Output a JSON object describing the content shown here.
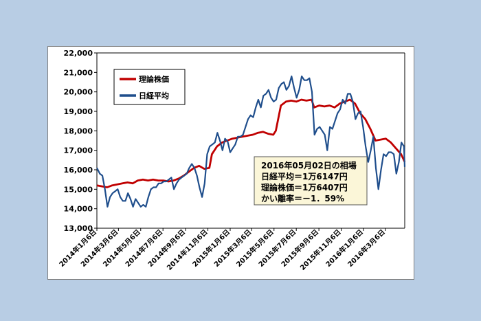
{
  "chart_data": {
    "type": "line",
    "y_ticks": [
      "13,000",
      "14,000",
      "15,000",
      "16,000",
      "17,000",
      "18,000",
      "19,000",
      "20,000",
      "21,000",
      "22,000"
    ],
    "ylim": [
      13000,
      22000
    ],
    "x_ticks": [
      "2014年1月6日",
      "2014年3月6日",
      "2014年5月6日",
      "2014年7月6日",
      "2014年9月6日",
      "2014年11月6日",
      "2015年1月6日",
      "2015年3月6日",
      "2015年5月6日",
      "2015年7月6日",
      "2015年9月6日",
      "2015年11月6日",
      "2016年1月6日",
      "2016年3月6日"
    ],
    "xlim": [
      "2014-01-06",
      "2016-04-28"
    ],
    "grid": false,
    "legend_position": "top-left",
    "series": [
      {
        "name": "理論株価",
        "color": "#c00000",
        "points": [
          [
            "2014-01-06",
            15200
          ],
          [
            "2014-01-20",
            15150
          ],
          [
            "2014-02-03",
            15100
          ],
          [
            "2014-02-17",
            15200
          ],
          [
            "2014-03-03",
            15250
          ],
          [
            "2014-03-17",
            15300
          ],
          [
            "2014-03-31",
            15350
          ],
          [
            "2014-04-14",
            15300
          ],
          [
            "2014-04-28",
            15450
          ],
          [
            "2014-05-12",
            15500
          ],
          [
            "2014-05-26",
            15450
          ],
          [
            "2014-06-09",
            15500
          ],
          [
            "2014-06-23",
            15450
          ],
          [
            "2014-07-07",
            15450
          ],
          [
            "2014-07-21",
            15400
          ],
          [
            "2014-08-04",
            15450
          ],
          [
            "2014-08-18",
            15550
          ],
          [
            "2014-09-01",
            15700
          ],
          [
            "2014-09-15",
            15900
          ],
          [
            "2014-09-29",
            16100
          ],
          [
            "2014-10-13",
            16200
          ],
          [
            "2014-10-27",
            16050
          ],
          [
            "2014-11-10",
            16100
          ],
          [
            "2014-11-17",
            16800
          ],
          [
            "2014-12-01",
            17200
          ],
          [
            "2014-12-15",
            17400
          ],
          [
            "2014-12-29",
            17500
          ],
          [
            "2015-01-12",
            17600
          ],
          [
            "2015-01-26",
            17650
          ],
          [
            "2015-02-09",
            17700
          ],
          [
            "2015-02-23",
            17750
          ],
          [
            "2015-03-09",
            17800
          ],
          [
            "2015-03-23",
            17900
          ],
          [
            "2015-04-06",
            17950
          ],
          [
            "2015-04-20",
            17850
          ],
          [
            "2015-05-04",
            17800
          ],
          [
            "2015-05-11",
            18000
          ],
          [
            "2015-05-25",
            19300
          ],
          [
            "2015-06-08",
            19500
          ],
          [
            "2015-06-22",
            19550
          ],
          [
            "2015-07-06",
            19500
          ],
          [
            "2015-07-20",
            19600
          ],
          [
            "2015-08-03",
            19550
          ],
          [
            "2015-08-17",
            19600
          ],
          [
            "2015-08-24",
            19200
          ],
          [
            "2015-09-07",
            19300
          ],
          [
            "2015-09-21",
            19250
          ],
          [
            "2015-10-05",
            19300
          ],
          [
            "2015-10-19",
            19200
          ],
          [
            "2015-11-02",
            19400
          ],
          [
            "2015-11-16",
            19500
          ],
          [
            "2015-11-30",
            19600
          ],
          [
            "2015-12-14",
            19400
          ],
          [
            "2015-12-28",
            18900
          ],
          [
            "2016-01-11",
            18600
          ],
          [
            "2016-01-25",
            18100
          ],
          [
            "2016-02-08",
            17500
          ],
          [
            "2016-02-22",
            17550
          ],
          [
            "2016-03-07",
            17600
          ],
          [
            "2016-03-21",
            17400
          ],
          [
            "2016-04-04",
            17100
          ],
          [
            "2016-04-18",
            16800
          ],
          [
            "2016-04-28",
            16407
          ]
        ]
      },
      {
        "name": "日経平均",
        "color": "#1f4e8c",
        "points": [
          [
            "2014-01-06",
            16100
          ],
          [
            "2014-01-14",
            15800
          ],
          [
            "2014-01-21",
            15700
          ],
          [
            "2014-01-28",
            15000
          ],
          [
            "2014-02-04",
            14100
          ],
          [
            "2014-02-11",
            14600
          ],
          [
            "2014-02-18",
            14800
          ],
          [
            "2014-02-25",
            14900
          ],
          [
            "2014-03-04",
            15000
          ],
          [
            "2014-03-11",
            14600
          ],
          [
            "2014-03-18",
            14400
          ],
          [
            "2014-03-25",
            14400
          ],
          [
            "2014-04-01",
            14800
          ],
          [
            "2014-04-08",
            14500
          ],
          [
            "2014-04-15",
            14100
          ],
          [
            "2014-04-22",
            14500
          ],
          [
            "2014-04-29",
            14300
          ],
          [
            "2014-05-06",
            14100
          ],
          [
            "2014-05-13",
            14200
          ],
          [
            "2014-05-20",
            14100
          ],
          [
            "2014-05-27",
            14600
          ],
          [
            "2014-06-03",
            15000
          ],
          [
            "2014-06-10",
            15100
          ],
          [
            "2014-06-17",
            15100
          ],
          [
            "2014-06-24",
            15300
          ],
          [
            "2014-07-01",
            15300
          ],
          [
            "2014-07-08",
            15400
          ],
          [
            "2014-07-15",
            15400
          ],
          [
            "2014-07-22",
            15500
          ],
          [
            "2014-07-29",
            15600
          ],
          [
            "2014-08-05",
            15000
          ],
          [
            "2014-08-12",
            15300
          ],
          [
            "2014-08-19",
            15500
          ],
          [
            "2014-08-26",
            15600
          ],
          [
            "2014-09-02",
            15700
          ],
          [
            "2014-09-09",
            15800
          ],
          [
            "2014-09-16",
            16100
          ],
          [
            "2014-09-23",
            16300
          ],
          [
            "2014-09-30",
            16100
          ],
          [
            "2014-10-07",
            15700
          ],
          [
            "2014-10-14",
            15100
          ],
          [
            "2014-10-21",
            14600
          ],
          [
            "2014-10-28",
            15300
          ],
          [
            "2014-11-04",
            16800
          ],
          [
            "2014-11-11",
            17200
          ],
          [
            "2014-11-18",
            17300
          ],
          [
            "2014-11-25",
            17400
          ],
          [
            "2014-12-02",
            17900
          ],
          [
            "2014-12-09",
            17500
          ],
          [
            "2014-12-16",
            17000
          ],
          [
            "2014-12-23",
            17600
          ],
          [
            "2014-12-30",
            17450
          ],
          [
            "2015-01-06",
            16900
          ],
          [
            "2015-01-13",
            17100
          ],
          [
            "2015-01-20",
            17300
          ],
          [
            "2015-01-27",
            17700
          ],
          [
            "2015-02-03",
            17700
          ],
          [
            "2015-02-10",
            17800
          ],
          [
            "2015-02-17",
            18200
          ],
          [
            "2015-02-24",
            18600
          ],
          [
            "2015-03-03",
            18800
          ],
          [
            "2015-03-10",
            18700
          ],
          [
            "2015-03-17",
            19200
          ],
          [
            "2015-03-24",
            19600
          ],
          [
            "2015-03-31",
            19200
          ],
          [
            "2015-04-07",
            19800
          ],
          [
            "2015-04-14",
            19900
          ],
          [
            "2015-04-21",
            20100
          ],
          [
            "2015-04-28",
            19700
          ],
          [
            "2015-05-05",
            19500
          ],
          [
            "2015-05-12",
            19600
          ],
          [
            "2015-05-19",
            20200
          ],
          [
            "2015-05-26",
            20400
          ],
          [
            "2015-06-02",
            20500
          ],
          [
            "2015-06-09",
            20100
          ],
          [
            "2015-06-16",
            20300
          ],
          [
            "2015-06-23",
            20800
          ],
          [
            "2015-06-30",
            20200
          ],
          [
            "2015-07-07",
            19700
          ],
          [
            "2015-07-14",
            20100
          ],
          [
            "2015-07-21",
            20800
          ],
          [
            "2015-07-28",
            20600
          ],
          [
            "2015-08-04",
            20600
          ],
          [
            "2015-08-11",
            20700
          ],
          [
            "2015-08-18",
            20000
          ],
          [
            "2015-08-25",
            17800
          ],
          [
            "2015-09-01",
            18100
          ],
          [
            "2015-09-08",
            18200
          ],
          [
            "2015-09-15",
            18000
          ],
          [
            "2015-09-22",
            17800
          ],
          [
            "2015-09-29",
            17000
          ],
          [
            "2015-10-06",
            18200
          ],
          [
            "2015-10-13",
            18100
          ],
          [
            "2015-10-20",
            18500
          ],
          [
            "2015-10-27",
            18900
          ],
          [
            "2015-11-03",
            19100
          ],
          [
            "2015-11-10",
            19600
          ],
          [
            "2015-11-17",
            19400
          ],
          [
            "2015-11-24",
            19900
          ],
          [
            "2015-12-01",
            19900
          ],
          [
            "2015-12-08",
            19500
          ],
          [
            "2015-12-15",
            18600
          ],
          [
            "2015-12-22",
            18900
          ],
          [
            "2015-12-29",
            19000
          ],
          [
            "2016-01-05",
            18200
          ],
          [
            "2016-01-12",
            17200
          ],
          [
            "2016-01-19",
            16400
          ],
          [
            "2016-01-26",
            17000
          ],
          [
            "2016-02-02",
            17700
          ],
          [
            "2016-02-09",
            16100
          ],
          [
            "2016-02-16",
            15000
          ],
          [
            "2016-02-23",
            16000
          ],
          [
            "2016-03-01",
            16800
          ],
          [
            "2016-03-08",
            16700
          ],
          [
            "2016-03-15",
            16900
          ],
          [
            "2016-03-22",
            16900
          ],
          [
            "2016-03-29",
            16800
          ],
          [
            "2016-04-05",
            15800
          ],
          [
            "2016-04-12",
            16400
          ],
          [
            "2016-04-19",
            17400
          ],
          [
            "2016-04-26",
            17200
          ],
          [
            "2016-04-28",
            16147
          ]
        ]
      }
    ],
    "annotation": {
      "lines": [
        "2016年05月02日の相場",
        "日経平均＝1万6147円",
        "理論株価＝1万6407円",
        "かい離率＝－1．59%"
      ]
    }
  }
}
